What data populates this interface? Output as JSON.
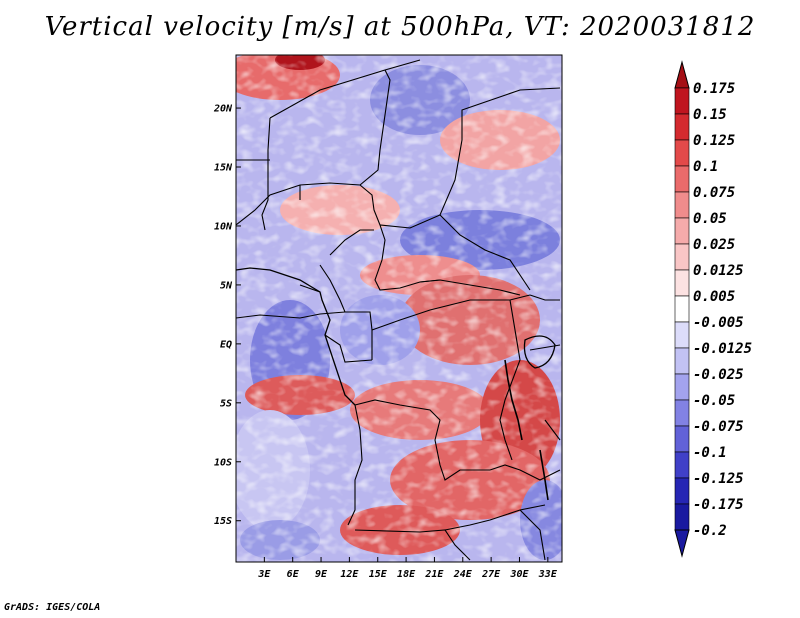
{
  "title": "Vertical velocity [m/s] at 500hPa, VT: 2020031812",
  "credit": "GrADS: IGES/COLA",
  "map": {
    "variable": "Vertical velocity",
    "units": "m/s",
    "level": "500hPa",
    "valid_time": "2020031812",
    "lon_range": [
      0,
      34.5
    ],
    "lat_range": [
      -18.5,
      24.5
    ],
    "lat_ticks": [
      {
        "value": 20,
        "label": "20N"
      },
      {
        "value": 15,
        "label": "15N"
      },
      {
        "value": 10,
        "label": "10N"
      },
      {
        "value": 5,
        "label": "5N"
      },
      {
        "value": 0,
        "label": "EQ"
      },
      {
        "value": -5,
        "label": "5S"
      },
      {
        "value": -10,
        "label": "10S"
      },
      {
        "value": -15,
        "label": "15S"
      }
    ],
    "lon_ticks": [
      {
        "value": 3,
        "label": "3E"
      },
      {
        "value": 6,
        "label": "6E"
      },
      {
        "value": 9,
        "label": "9E"
      },
      {
        "value": 12,
        "label": "12E"
      },
      {
        "value": 15,
        "label": "15E"
      },
      {
        "value": 18,
        "label": "18E"
      },
      {
        "value": 21,
        "label": "21E"
      },
      {
        "value": 24,
        "label": "24E"
      },
      {
        "value": 27,
        "label": "27E"
      },
      {
        "value": 30,
        "label": "30E"
      },
      {
        "value": 33,
        "label": "33E"
      }
    ]
  },
  "colorbar": {
    "levels": [
      {
        "label": "0.175",
        "color": "#a50f15"
      },
      {
        "label": "0.15",
        "color": "#c0151f"
      },
      {
        "label": "0.125",
        "color": "#d42a2f"
      },
      {
        "label": "0.1",
        "color": "#e34a4a"
      },
      {
        "label": "0.075",
        "color": "#ea6b6b"
      },
      {
        "label": "0.05",
        "color": "#f08c8c"
      },
      {
        "label": "0.025",
        "color": "#f5abab"
      },
      {
        "label": "0.0125",
        "color": "#f9c6c6"
      },
      {
        "label": "0.005",
        "color": "#fce2e2"
      },
      {
        "label": "-0.005",
        "color": "#ffffff"
      },
      {
        "label": "-0.0125",
        "color": "#dcdcfa"
      },
      {
        "label": "-0.025",
        "color": "#c2c2f4"
      },
      {
        "label": "-0.05",
        "color": "#a3a3ee"
      },
      {
        "label": "-0.075",
        "color": "#8282e4"
      },
      {
        "label": "-0.1",
        "color": "#6262d8"
      },
      {
        "label": "-0.125",
        "color": "#4040c8"
      },
      {
        "label": "-0.175",
        "color": "#2626b4"
      },
      {
        "label": "-0.2",
        "color": "#1a1aa0"
      }
    ],
    "top_color": "#a50f15",
    "bottom_color": "#1a1aa0",
    "neutral_color": "#ffffff"
  }
}
